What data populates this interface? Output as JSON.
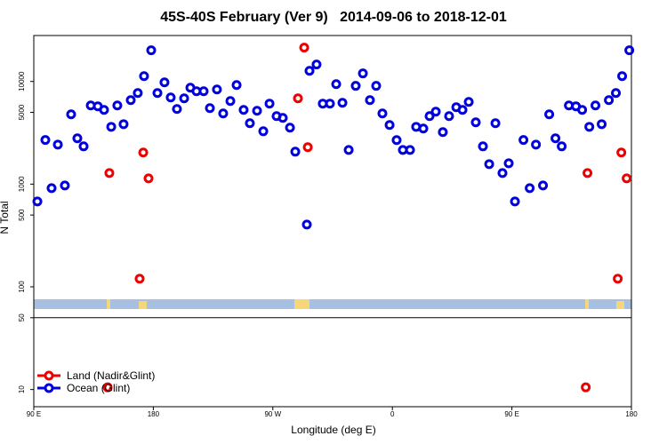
{
  "chart_data": {
    "type": "scatter",
    "title": "45S-40S February (Ver 9)   2014-09-06 to 2018-12-01",
    "x_label": "Longitude (deg E)",
    "y_label": "N Total",
    "log_y": true,
    "legend": "bottom-left",
    "hline": 50,
    "xlim": [
      90,
      540
    ],
    "ylim": [
      6.8,
      28000
    ],
    "xticks": [
      {
        "value": 90,
        "label": "90 E"
      },
      {
        "value": 180,
        "label": "180"
      },
      {
        "value": 270,
        "label": "90 W"
      },
      {
        "value": 360,
        "label": "0"
      },
      {
        "value": 450,
        "label": "90 E"
      },
      {
        "value": 540,
        "label": "180"
      }
    ],
    "yticks": [
      10,
      50,
      100,
      500,
      1000,
      5000,
      10000
    ],
    "series": [
      {
        "name": "Ocean (Glint)",
        "color": "#0000dd",
        "x": [
          92.7,
          98.7,
          103.4,
          108.1,
          113.4,
          118.1,
          122.8,
          127.5,
          132.9,
          138.2,
          142.9,
          148.3,
          152.9,
          157.6,
          163.0,
          168.3,
          173.0,
          178.4,
          183.1,
          188.4,
          193.1,
          197.8,
          203.2,
          207.9,
          212.5,
          217.9,
          222.6,
          227.9,
          232.6,
          238.0,
          242.7,
          248.0,
          252.7,
          258.1,
          262.8,
          267.5,
          272.8,
          277.5,
          282.9,
          286.9,
          295.6,
          297.6,
          302.9,
          307.6,
          313.0,
          317.7,
          322.4,
          327.1,
          332.4,
          337.8,
          343.1,
          347.8,
          352.5,
          357.9,
          363.2,
          367.9,
          373.3,
          377.9,
          383.3,
          388.0,
          392.7,
          398.0,
          402.7,
          408.1,
          412.8,
          417.5,
          422.8,
          428.2,
          432.9,
          437.6,
          442.9,
          447.6,
          452.3,
          458.7,
          463.4,
          468.1,
          473.4,
          478.1,
          482.8,
          487.5,
          492.9,
          498.2,
          502.9,
          508.3,
          512.9,
          517.6,
          523.0,
          528.3,
          533.0,
          538.4
        ],
        "values": [
          678,
          2690,
          914,
          2427,
          970,
          4786,
          2792,
          2333,
          5834,
          5728,
          5284,
          3614,
          5834,
          3837,
          6577,
          7709,
          11270,
          20090,
          7709,
          9795,
          6982,
          5395,
          6843,
          8690,
          8034,
          8034,
          5500,
          8360,
          4875,
          6451,
          9230,
          5284,
          3918,
          5180,
          3273,
          6080,
          4592,
          4415,
          3548,
          2070,
          404,
          12700,
          14620,
          6080,
          6080,
          9420,
          6194,
          2153,
          9057,
          11970,
          6577,
          9057,
          4875,
          3767,
          2683,
          2153,
          2153,
          3614,
          3477,
          4592,
          5082,
          3210,
          4592,
          5610,
          5284,
          6325,
          3996,
          2333,
          1566,
          3918,
          1282,
          1597,
          678,
          2690,
          914,
          2427,
          970,
          4786,
          2792,
          2333,
          5834,
          5728,
          5284,
          3614,
          5834,
          3837,
          6577,
          7709,
          11270,
          20090
        ]
      },
      {
        "name": "Land (Nadir&Glint)",
        "color": "#ee0000",
        "x": [
          145.6,
          146.9,
          169.7,
          172.4,
          176.4,
          288.9,
          293.6,
          296.3,
          505.6,
          506.9,
          529.7,
          532.4,
          536.4
        ],
        "values": [
          10.5,
          1282,
          120,
          2030,
          1138,
          6843,
          21330,
          2288,
          10.5,
          1282,
          120,
          2030,
          1138
        ]
      }
    ]
  }
}
